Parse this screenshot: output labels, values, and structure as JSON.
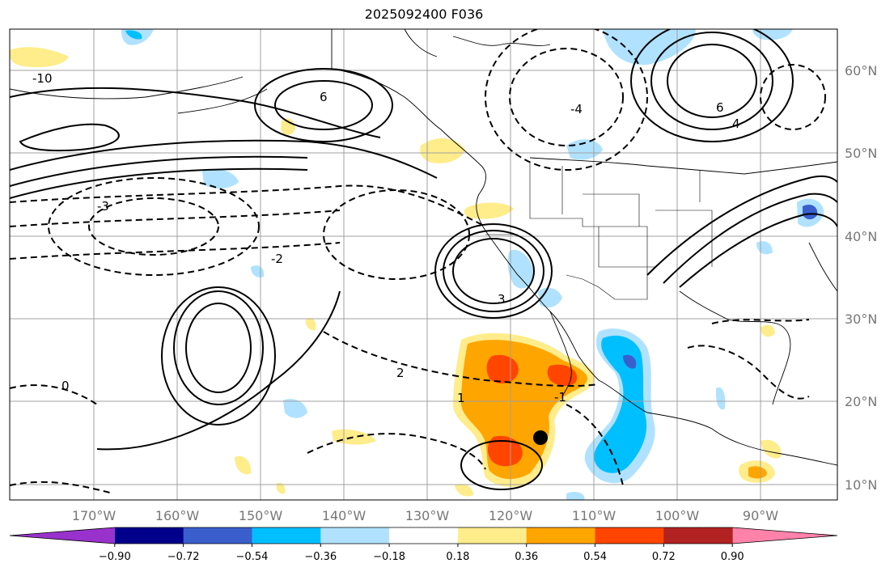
{
  "title": "2025092400 F036",
  "lon_labels": [
    "170°W",
    "160°W",
    "150°W",
    "140°W",
    "130°W",
    "120°W",
    "110°W",
    "100°W",
    "90°W"
  ],
  "lat_labels": [
    "60°N",
    "50°N",
    "40°N",
    "30°N",
    "20°N",
    "10°N"
  ],
  "colorbar": {
    "ticks": [
      "−0.90",
      "−0.72",
      "−0.54",
      "−0.36",
      "−0.18",
      "0.18",
      "0.36",
      "0.54",
      "0.72",
      "0.90"
    ],
    "colors": [
      "#9932cc",
      "#00008b",
      "#3a5fcd",
      "#00bfff",
      "#b0e2ff",
      "#ffffff",
      "#ffec8b",
      "#ffa500",
      "#ff4500",
      "#b22222",
      "#ff82ab"
    ]
  },
  "contour_labels": [
    "6",
    "6",
    "4",
    "3",
    "2",
    "1",
    "0",
    "-1",
    "-2",
    "-3",
    "-4",
    "-10"
  ],
  "map": {
    "lon_range": [
      -180,
      -81
    ],
    "lat_range": [
      8,
      65
    ],
    "projection": "PlateCarree",
    "grid": true
  }
}
